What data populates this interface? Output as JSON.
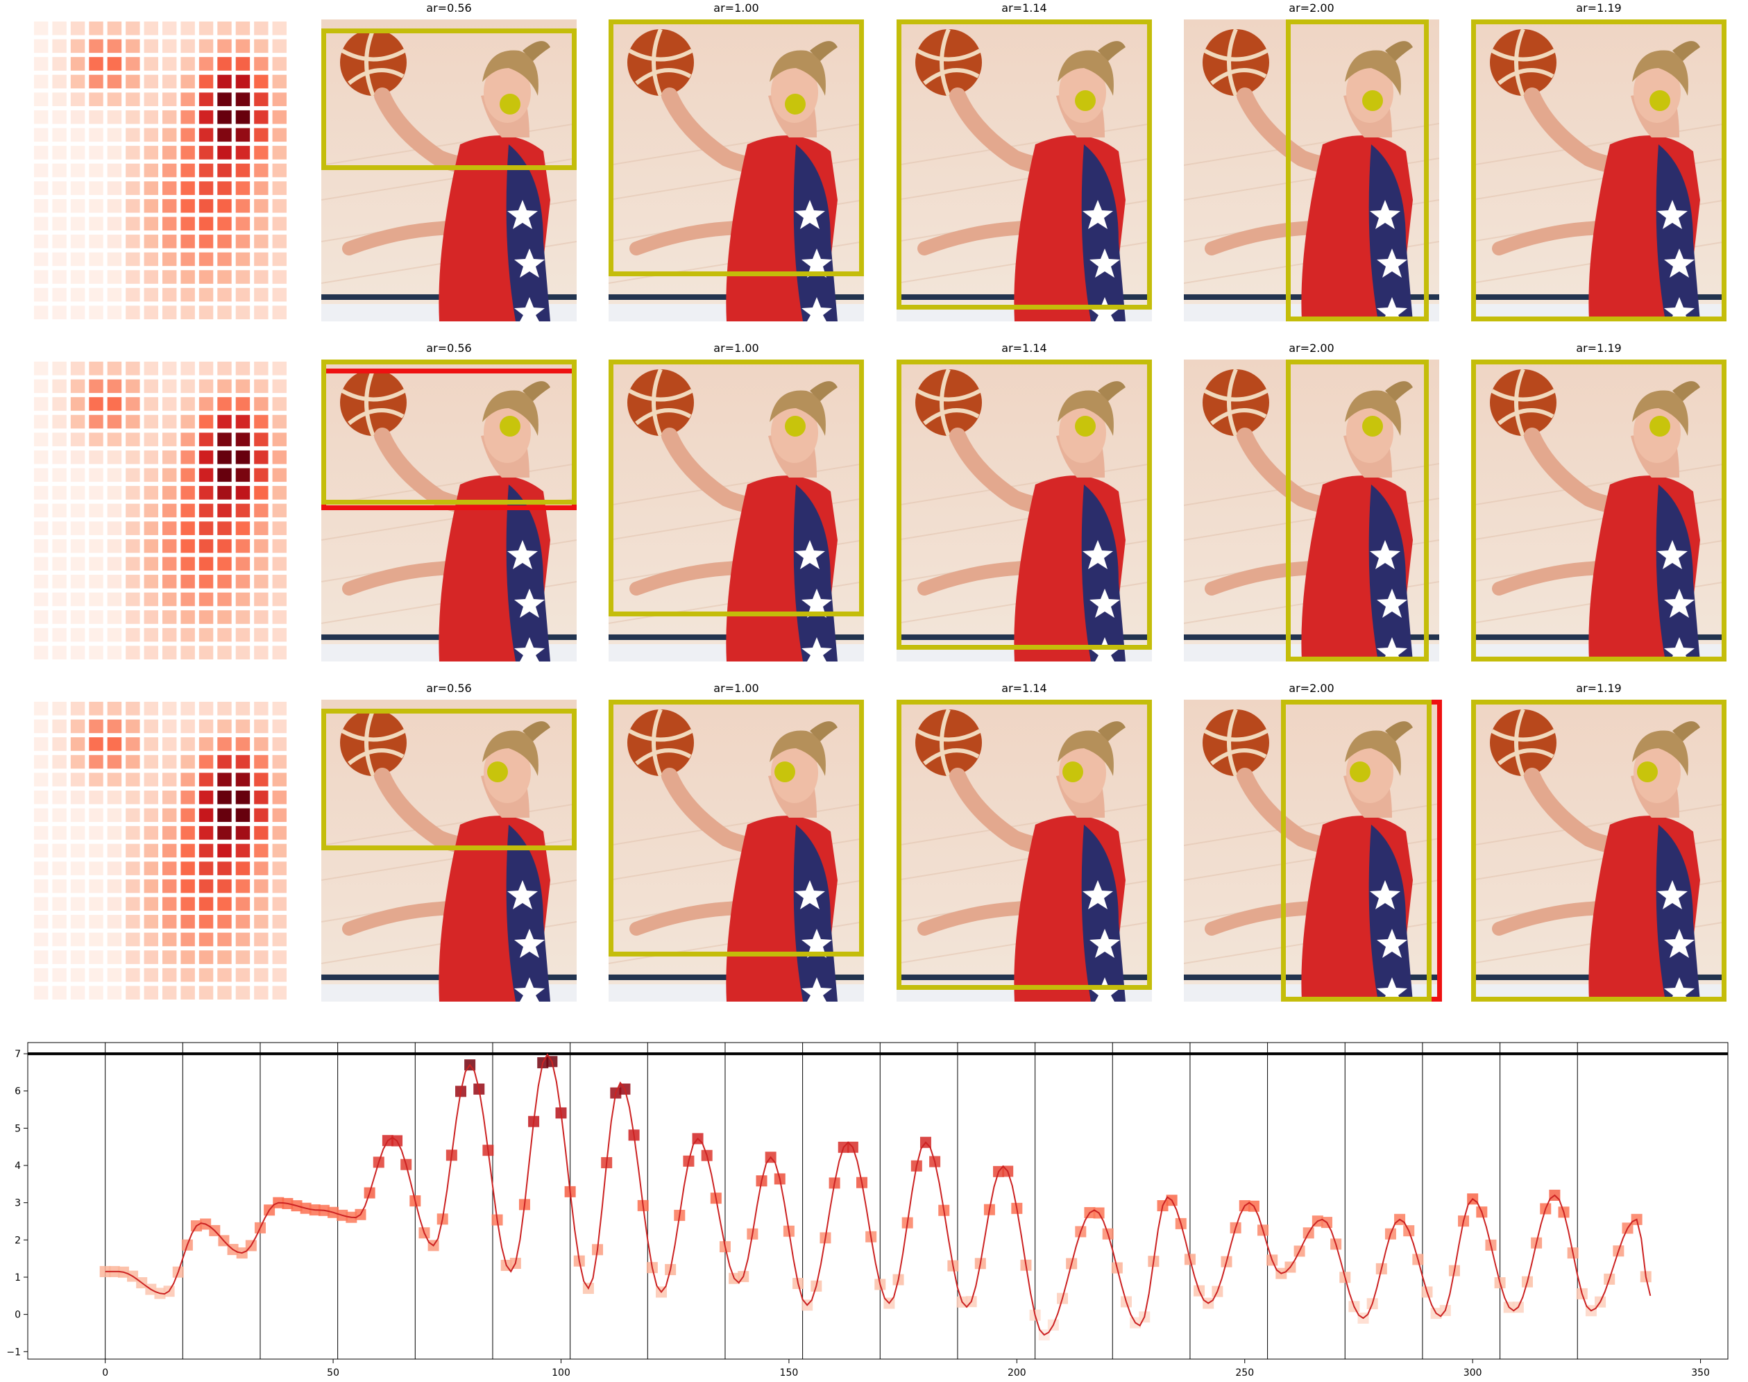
{
  "grid": {
    "rows": [
      {
        "panels": [
          {
            "title": "ar=0.56",
            "crops": [
              {
                "color": "#c4bd0a",
                "box": [
                  0.0,
                  0.03,
                  1.0,
                  0.5
                ]
              }
            ],
            "dot": [
              0.74,
              0.28
            ]
          },
          {
            "title": "ar=1.00",
            "crops": [
              {
                "color": "#c4bd0a",
                "box": [
                  0.0,
                  0.0,
                  1.0,
                  0.85
                ]
              }
            ],
            "dot": [
              0.73,
              0.28
            ]
          },
          {
            "title": "ar=1.14",
            "crops": [
              {
                "color": "#c4bd0a",
                "box": [
                  0.0,
                  0.0,
                  1.0,
                  0.96
                ]
              }
            ],
            "dot": [
              0.74,
              0.27
            ]
          },
          {
            "title": "ar=2.00",
            "crops": [
              {
                "color": "#c4bd0a",
                "box": [
                  0.4,
                  0.0,
                  0.96,
                  1.0
                ]
              }
            ],
            "dot": [
              0.74,
              0.27
            ]
          },
          {
            "title": "ar=1.19",
            "crops": [
              {
                "color": "#c4bd0a",
                "box": [
                  0.0,
                  0.0,
                  1.0,
                  1.0
                ]
              }
            ],
            "dot": [
              0.74,
              0.27
            ]
          }
        ]
      },
      {
        "panels": [
          {
            "title": "ar=0.56",
            "crops": [
              {
                "color": "#ee1111",
                "box": [
                  0.0,
                  0.03,
                  1.0,
                  0.5
                ]
              },
              {
                "color": "#c4bd0a",
                "box": [
                  0.0,
                  0.0,
                  1.0,
                  0.48
                ]
              }
            ],
            "dot": [
              0.74,
              0.22
            ]
          },
          {
            "title": "ar=1.00",
            "crops": [
              {
                "color": "#c4bd0a",
                "box": [
                  0.0,
                  0.0,
                  1.0,
                  0.85
                ]
              }
            ],
            "dot": [
              0.73,
              0.22
            ]
          },
          {
            "title": "ar=1.14",
            "crops": [
              {
                "color": "#c4bd0a",
                "box": [
                  0.0,
                  0.0,
                  1.0,
                  0.96
                ]
              }
            ],
            "dot": [
              0.74,
              0.22
            ]
          },
          {
            "title": "ar=2.00",
            "crops": [
              {
                "color": "#c4bd0a",
                "box": [
                  0.4,
                  0.0,
                  0.96,
                  1.0
                ]
              }
            ],
            "dot": [
              0.74,
              0.22
            ]
          },
          {
            "title": "ar=1.19",
            "crops": [
              {
                "color": "#c4bd0a",
                "box": [
                  0.0,
                  0.0,
                  1.0,
                  1.0
                ]
              }
            ],
            "dot": [
              0.74,
              0.22
            ]
          }
        ]
      },
      {
        "panels": [
          {
            "title": "ar=0.56",
            "crops": [
              {
                "color": "#c4bd0a",
                "box": [
                  0.0,
                  0.03,
                  1.0,
                  0.5
                ]
              }
            ],
            "dot": [
              0.69,
              0.24
            ]
          },
          {
            "title": "ar=1.00",
            "crops": [
              {
                "color": "#c4bd0a",
                "box": [
                  0.0,
                  0.0,
                  1.0,
                  0.85
                ]
              }
            ],
            "dot": [
              0.69,
              0.24
            ]
          },
          {
            "title": "ar=1.14",
            "crops": [
              {
                "color": "#c4bd0a",
                "box": [
                  0.0,
                  0.0,
                  1.0,
                  0.96
                ]
              }
            ],
            "dot": [
              0.69,
              0.24
            ]
          },
          {
            "title": "ar=2.00",
            "crops": [
              {
                "color": "#ee1111",
                "box": [
                  0.38,
                  0.0,
                  1.01,
                  1.0
                ]
              },
              {
                "color": "#c4bd0a",
                "box": [
                  0.38,
                  0.0,
                  0.97,
                  1.0
                ]
              }
            ],
            "dot": [
              0.69,
              0.24
            ]
          },
          {
            "title": "ar=1.19",
            "crops": [
              {
                "color": "#c4bd0a",
                "box": [
                  0.0,
                  0.0,
                  1.0,
                  1.0
                ]
              }
            ],
            "dot": [
              0.69,
              0.24
            ]
          }
        ]
      }
    ]
  },
  "chart_data": {
    "type": "line",
    "title": "",
    "xlabel": "",
    "ylabel": "",
    "xlim": [
      -17,
      356
    ],
    "ylim": [
      -1.2,
      7.3
    ],
    "xticks": [
      0,
      50,
      100,
      150,
      200,
      250,
      300,
      350
    ],
    "yticks": [
      -1,
      0,
      1,
      2,
      3,
      4,
      5,
      6,
      7
    ],
    "hline": 7,
    "vlines": [
      0,
      17,
      34,
      51,
      68,
      85,
      102,
      119,
      136,
      153,
      170,
      187,
      204,
      221,
      238,
      255,
      272,
      289,
      306,
      323
    ],
    "line_color": "#cc2222",
    "marker": "square",
    "marker_cmap": "Reds",
    "grid": false,
    "legend": "none",
    "peaks": [
      {
        "x": 3,
        "y": 1.15
      },
      {
        "x": 13,
        "y": 0.55
      },
      {
        "x": 21,
        "y": 2.45
      },
      {
        "x": 30,
        "y": 1.65
      },
      {
        "x": 38,
        "y": 3.0
      },
      {
        "x": 47,
        "y": 2.8
      },
      {
        "x": 55,
        "y": 2.6
      },
      {
        "x": 63,
        "y": 4.75
      },
      {
        "x": 72,
        "y": 1.85
      },
      {
        "x": 80,
        "y": 6.7
      },
      {
        "x": 89,
        "y": 1.15
      },
      {
        "x": 97,
        "y": 6.98
      },
      {
        "x": 106,
        "y": 0.7
      },
      {
        "x": 113,
        "y": 6.22
      },
      {
        "x": 122,
        "y": 0.6
      },
      {
        "x": 130,
        "y": 4.72
      },
      {
        "x": 139,
        "y": 0.85
      },
      {
        "x": 146,
        "y": 4.22
      },
      {
        "x": 154,
        "y": 0.25
      },
      {
        "x": 163,
        "y": 4.62
      },
      {
        "x": 172,
        "y": 0.3
      },
      {
        "x": 180,
        "y": 4.62
      },
      {
        "x": 189,
        "y": 0.2
      },
      {
        "x": 197,
        "y": 3.98
      },
      {
        "x": 206,
        "y": -0.55
      },
      {
        "x": 217,
        "y": 2.8
      },
      {
        "x": 227,
        "y": -0.3
      },
      {
        "x": 233,
        "y": 3.15
      },
      {
        "x": 242,
        "y": 0.3
      },
      {
        "x": 251,
        "y": 3.0
      },
      {
        "x": 258,
        "y": 1.1
      },
      {
        "x": 267,
        "y": 2.55
      },
      {
        "x": 276,
        "y": -0.1
      },
      {
        "x": 284,
        "y": 2.55
      },
      {
        "x": 293,
        "y": -0.05
      },
      {
        "x": 300,
        "y": 3.1
      },
      {
        "x": 309,
        "y": 0.1
      },
      {
        "x": 318,
        "y": 3.2
      },
      {
        "x": 326,
        "y": 0.1
      },
      {
        "x": 336,
        "y": 2.55
      },
      {
        "x": 339,
        "y": 0.5
      }
    ]
  }
}
